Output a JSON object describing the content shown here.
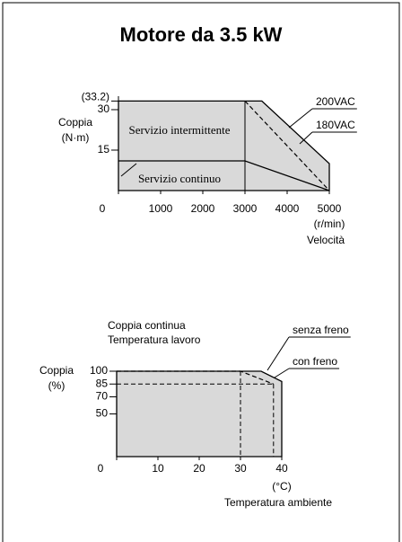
{
  "title": "Motore da 3.5 kW",
  "chart_data": [
    {
      "type": "area",
      "ylabel": [
        "Coppia",
        "(N·m)"
      ],
      "xlabel": [
        "(r/min)",
        "Velocità"
      ],
      "annotations": [
        "Servizio intermittente"
      ],
      "xlim": [
        0,
        5000
      ],
      "xticks": [
        0,
        1000,
        2000,
        3000,
        4000,
        5000
      ],
      "ylim": [
        0,
        35
      ],
      "yticks": [
        15,
        30,
        {
          "value": 33.2,
          "label": "(33.2)"
        }
      ],
      "series": [
        {
          "name": "200VAC",
          "color": "#000000",
          "fill": "#d9d9d9",
          "leader": true,
          "x": [
            0,
            3400,
            5000,
            5000
          ],
          "values": [
            33.2,
            33.2,
            10,
            0
          ]
        },
        {
          "name": "180VAC",
          "color": "#000000",
          "dashed": true,
          "leader": true,
          "x": [
            3000,
            5000
          ],
          "values": [
            33.2,
            0
          ]
        },
        {
          "name": "Servizio continuo",
          "color": "#000000",
          "x": [
            0,
            3000,
            5000
          ],
          "values": [
            11,
            11,
            0
          ]
        }
      ]
    },
    {
      "type": "area",
      "title": [
        "Coppia continua",
        "Temperatura lavoro"
      ],
      "ylabel": [
        "Coppia",
        "(%)"
      ],
      "xlabel": [
        "(°C)",
        "Temperatura ambiente"
      ],
      "xlim": [
        0,
        40
      ],
      "xticks": [
        0,
        10,
        20,
        30,
        40
      ],
      "ylim": [
        0,
        100
      ],
      "yticks": [
        50,
        70,
        85,
        100
      ],
      "series": [
        {
          "name": "senza freno",
          "color": "#000000",
          "fill": "#d9d9d9",
          "leader": true,
          "x": [
            0,
            35,
            40,
            40
          ],
          "values": [
            100,
            100,
            88,
            0
          ]
        },
        {
          "name": "con freno",
          "color": "#000000",
          "dashed": true,
          "leader": true,
          "x": [
            0,
            30,
            38
          ],
          "values": [
            100,
            100,
            85
          ]
        }
      ]
    }
  ]
}
